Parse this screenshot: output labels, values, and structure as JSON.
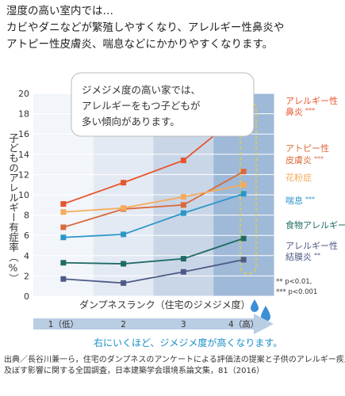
{
  "intro": [
    "湿度の高い室内では…",
    "カビやダニなどが繁殖しやすくなり、アレルギー性鼻炎や",
    "アトピー性皮膚炎、喘息などにかかりやすくなります。"
  ],
  "callout": [
    "ジメジメ度の高い家では、",
    "アレルギーをもつ子どもが",
    "多い傾向があります。"
  ],
  "chart_data": {
    "type": "line",
    "ylabel": "子どものアレルギー有症率（%）",
    "xlabel": "ダンプネスランク（住宅のジメジメ度）",
    "categories": [
      "1（低）",
      "2",
      "3",
      "4（高）"
    ],
    "ylim": [
      0,
      20
    ],
    "yticks": [
      0,
      2,
      4,
      6,
      8,
      10,
      12,
      14,
      16,
      18,
      20
    ],
    "series": [
      {
        "label_lines": [
          "アレルギー性",
          "鼻炎"
        ],
        "sig": "***",
        "color": "#e8552e",
        "marker": "square",
        "values": [
          9.1,
          11.2,
          13.4,
          18.2
        ]
      },
      {
        "label_lines": [
          "アトピー性",
          "皮膚炎"
        ],
        "sig": "***",
        "color": "#d96a3c",
        "marker": "square",
        "values": [
          6.8,
          8.6,
          9.0,
          12.3
        ]
      },
      {
        "label_lines": [
          "花粉症"
        ],
        "sig": "",
        "color": "#f5ab5a",
        "marker": "square",
        "values": [
          8.3,
          8.7,
          9.8,
          11.0
        ]
      },
      {
        "label_lines": [
          "喘息"
        ],
        "sig": "***",
        "color": "#2b97c9",
        "marker": "square",
        "values": [
          5.8,
          6.1,
          8.2,
          10.1
        ]
      },
      {
        "label_lines": [
          "食物アレルギー"
        ],
        "sig": "",
        "color": "#1f6b64",
        "marker": "square",
        "values": [
          3.3,
          3.2,
          3.7,
          5.7
        ]
      },
      {
        "label_lines": [
          "アレルギー性",
          "結膜炎"
        ],
        "sig": "**",
        "color": "#4d5a86",
        "marker": "square",
        "values": [
          1.7,
          1.3,
          2.4,
          3.6
        ]
      }
    ],
    "grid": true
  },
  "significance": [
    "** p<0.01,",
    "*** p<0.001"
  ],
  "arrow_caption": "右にいくほど、ジメジメ度が高くなります。",
  "footnote": [
    "出典／長谷川兼一ら，住宅のダンプネスのアンケートによる評価法の提案と子供のアレルギー疾患に",
    "及ぼす影響に関する全国調査，日本建築学会環境系論文集，81（2016）"
  ],
  "colors": {
    "band1": "#f2f5fa",
    "band2": "#e4eaf3",
    "band3": "#c9d6e8",
    "band4": "#9fb9d8",
    "grid": "#ffffff",
    "arrow": "#b9cde3",
    "caption": "#1b8fc8",
    "drop": "#3a8fd6",
    "highlight": "#e5d33a"
  }
}
